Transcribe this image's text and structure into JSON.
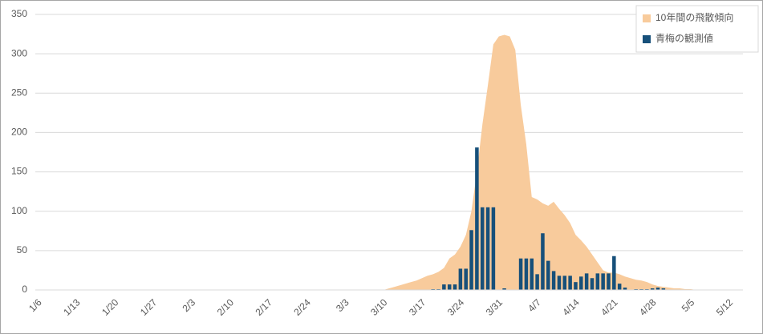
{
  "chart_data": {
    "type": "bar-area",
    "categories": [
      "1/6",
      null,
      null,
      null,
      null,
      null,
      null,
      "1/13",
      null,
      null,
      null,
      null,
      null,
      null,
      "1/20",
      null,
      null,
      null,
      null,
      null,
      null,
      "1/27",
      null,
      null,
      null,
      null,
      null,
      null,
      "2/3",
      null,
      null,
      null,
      null,
      null,
      null,
      "2/10",
      null,
      null,
      null,
      null,
      null,
      null,
      "2/17",
      null,
      null,
      null,
      null,
      null,
      null,
      "2/24",
      null,
      null,
      null,
      null,
      null,
      null,
      "3/3",
      null,
      null,
      null,
      null,
      null,
      null,
      "3/10",
      null,
      null,
      null,
      null,
      null,
      null,
      "3/17",
      null,
      null,
      null,
      null,
      null,
      null,
      "3/24",
      null,
      null,
      null,
      null,
      null,
      null,
      "3/31",
      null,
      null,
      null,
      null,
      null,
      null,
      "4/7",
      null,
      null,
      null,
      null,
      null,
      null,
      "4/14",
      null,
      null,
      null,
      null,
      null,
      null,
      "4/21",
      null,
      null,
      null,
      null,
      null,
      null,
      "4/28",
      null,
      null,
      null,
      null,
      null,
      null,
      "5/5",
      null,
      null,
      null,
      null,
      null,
      null,
      "5/12",
      null,
      null
    ],
    "series": [
      {
        "name": "10年間の飛散傾向",
        "kind": "area",
        "color": "#f8cb9c",
        "values": [
          0,
          0,
          0,
          0,
          0,
          0,
          0,
          0,
          0,
          0,
          0,
          0,
          0,
          0,
          0,
          0,
          0,
          0,
          0,
          0,
          0,
          0,
          0,
          0,
          0,
          0,
          0,
          0,
          0,
          0,
          0,
          0,
          0,
          0,
          0,
          0,
          0,
          0,
          0,
          0,
          0,
          0,
          0,
          0,
          0,
          0,
          0,
          0,
          0,
          0,
          0,
          0,
          0,
          0,
          0,
          0,
          0,
          0,
          0,
          0,
          0,
          0,
          0,
          0,
          2,
          4,
          6,
          8,
          10,
          12,
          15,
          18,
          20,
          23,
          28,
          40,
          45,
          55,
          70,
          100,
          150,
          210,
          260,
          312,
          322,
          324,
          322,
          305,
          235,
          185,
          118,
          115,
          110,
          107,
          112,
          103,
          95,
          85,
          70,
          63,
          55,
          45,
          35,
          25,
          22,
          22,
          20,
          17,
          15,
          13,
          12,
          10,
          7,
          5,
          4,
          3,
          2,
          2,
          1,
          1,
          0,
          0,
          0,
          0,
          0,
          0,
          0,
          0,
          0
        ]
      },
      {
        "name": "青梅の観測値",
        "kind": "bar",
        "color": "#17507a",
        "values": [
          null,
          null,
          null,
          null,
          null,
          null,
          null,
          null,
          null,
          null,
          null,
          null,
          null,
          null,
          null,
          null,
          null,
          null,
          null,
          null,
          null,
          null,
          null,
          null,
          null,
          null,
          null,
          null,
          null,
          null,
          null,
          null,
          null,
          null,
          null,
          null,
          null,
          null,
          null,
          null,
          null,
          null,
          null,
          null,
          null,
          null,
          null,
          null,
          null,
          null,
          null,
          null,
          null,
          null,
          null,
          null,
          null,
          null,
          null,
          null,
          null,
          null,
          null,
          null,
          null,
          null,
          null,
          null,
          null,
          null,
          null,
          null,
          1,
          1,
          7,
          7,
          7,
          27,
          27,
          76,
          181,
          105,
          105,
          105,
          null,
          2,
          null,
          null,
          40,
          40,
          40,
          20,
          72,
          37,
          24,
          18,
          18,
          18,
          10,
          17,
          21,
          15,
          21,
          21,
          21,
          43,
          8,
          3,
          null,
          1,
          1,
          1,
          2,
          3,
          2,
          null,
          null,
          null,
          null,
          null,
          null,
          null,
          null,
          null,
          null,
          null,
          null,
          null,
          null
        ]
      }
    ],
    "ylim": [
      0,
      350
    ],
    "yticks": [
      0,
      50,
      100,
      150,
      200,
      250,
      300,
      350
    ],
    "grid": true,
    "legend": "top-right"
  }
}
